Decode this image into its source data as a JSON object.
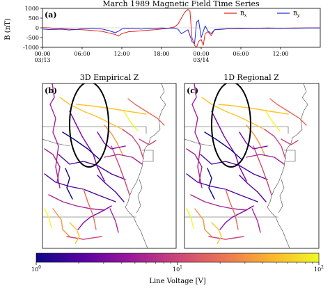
{
  "chart_data": [
    {
      "type": "line",
      "panel_label": "(a)",
      "title": "March 1989 Magnetic Field Time Series",
      "ylabel": "B (nT)",
      "ylim": [
        -1000,
        1000
      ],
      "yticks": [
        "1000",
        "500",
        "0",
        "-500",
        "-1000"
      ],
      "xlim": [
        0,
        42
      ],
      "xticks": [
        {
          "hours": 0,
          "line1": "00:00",
          "line2": "03/13"
        },
        {
          "hours": 6,
          "line1": "06:00",
          "line2": ""
        },
        {
          "hours": 12,
          "line1": "12:00",
          "line2": ""
        },
        {
          "hours": 18,
          "line1": "18:00",
          "line2": ""
        },
        {
          "hours": 24,
          "line1": "00:00",
          "line2": "03/14"
        },
        {
          "hours": 30,
          "line1": "06:00",
          "line2": ""
        },
        {
          "hours": 36,
          "line1": "12:00",
          "line2": ""
        }
      ],
      "legend_position": "top-right",
      "series": [
        {
          "name": "Bx",
          "label_main": "B",
          "label_sub": "x",
          "color": "#e8201a",
          "x": [
            0,
            1,
            2,
            3,
            4,
            5,
            6,
            7,
            8,
            9,
            10,
            11,
            11.5,
            12,
            12.5,
            13,
            14,
            15,
            16,
            17,
            18,
            19,
            20,
            20.5,
            21,
            21.5,
            22,
            22.3,
            22.6,
            23,
            23.3,
            23.6,
            24,
            24.3,
            24.6,
            25,
            25.5,
            26,
            27,
            28,
            30,
            32,
            34,
            36,
            38,
            40,
            42
          ],
          "y": [
            10,
            0,
            -40,
            -20,
            -60,
            -80,
            -100,
            -120,
            -150,
            -180,
            -260,
            -340,
            -420,
            -300,
            -250,
            -200,
            -180,
            -150,
            -120,
            -100,
            -60,
            -20,
            50,
            200,
            500,
            800,
            950,
            850,
            -500,
            -900,
            -1000,
            -700,
            -600,
            -900,
            -300,
            -200,
            -400,
            -100,
            -60,
            -40,
            -20,
            -20,
            -10,
            -20,
            -10,
            -5,
            0
          ]
        },
        {
          "name": "By",
          "label_main": "B",
          "label_sub": "y",
          "color": "#1e2dd8",
          "x": [
            0,
            1,
            2,
            3,
            4,
            5,
            6,
            7,
            8,
            9,
            10,
            11,
            11.5,
            12,
            12.5,
            13,
            14,
            15,
            16,
            17,
            18,
            19,
            20,
            20.5,
            21,
            21.5,
            22,
            22.3,
            22.6,
            23,
            23.3,
            23.6,
            24,
            24.3,
            24.6,
            25,
            25.5,
            26,
            27,
            28,
            30,
            32,
            34,
            36,
            38,
            40,
            42
          ],
          "y": [
            -60,
            -90,
            -80,
            -70,
            -110,
            -90,
            -40,
            -30,
            -40,
            -60,
            -140,
            -250,
            -170,
            -60,
            -30,
            -20,
            -40,
            -60,
            -30,
            -20,
            -10,
            -20,
            -10,
            -80,
            -300,
            -200,
            -100,
            -400,
            -700,
            -800,
            300,
            400,
            -500,
            -200,
            100,
            -150,
            -300,
            -100,
            -80,
            -50,
            -40,
            -30,
            -30,
            -20,
            -20,
            -10,
            -10
          ]
        }
      ]
    },
    {
      "type": "map",
      "panel_label": "(b)",
      "title": "3D Empirical Z"
    },
    {
      "type": "map",
      "panel_label": "(c)",
      "title": "1D Regional Z"
    }
  ],
  "colorbar": {
    "label": "Line Voltage [V]",
    "tick_base": "10",
    "ticks": [
      {
        "value": 1,
        "exp": "0"
      },
      {
        "value": 10,
        "exp": "1"
      },
      {
        "value": 100,
        "exp": "2"
      }
    ],
    "range": [
      1,
      100
    ],
    "scale": "log",
    "colormap": [
      "#0d0887",
      "#5b02a3",
      "#9a179b",
      "#cb4678",
      "#eb7852",
      "#fbb32f",
      "#f0f921"
    ]
  }
}
